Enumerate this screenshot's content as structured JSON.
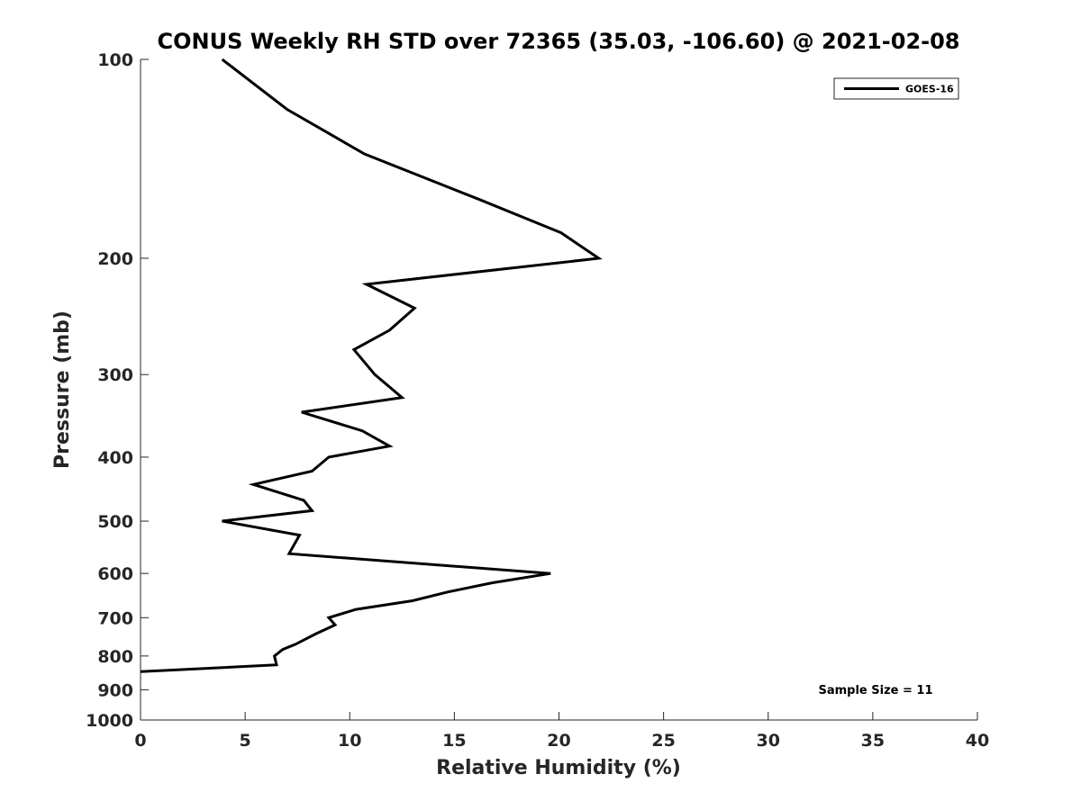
{
  "chart_data": {
    "type": "line",
    "title": "CONUS Weekly RH STD over 72365 (35.03, -106.60) @ 2021-02-08",
    "xlabel": "Relative Humidity (%)",
    "ylabel": "Pressure (mb)",
    "xlim": [
      0,
      40
    ],
    "ylim": [
      100,
      1000
    ],
    "y_scale": "log",
    "y_reversed": true,
    "x_ticks": [
      0,
      5,
      10,
      15,
      20,
      25,
      30,
      35,
      40
    ],
    "y_ticks": [
      100,
      200,
      300,
      400,
      500,
      600,
      700,
      800,
      900,
      1000
    ],
    "grid": false,
    "legend": {
      "position": "top-right",
      "entries": [
        "GOES-16"
      ]
    },
    "annotation": "Sample Size = 11",
    "series": [
      {
        "name": "GOES-16",
        "color": "#000000",
        "points": [
          {
            "rh": 3.9,
            "p": 100
          },
          {
            "rh": 7.0,
            "p": 119
          },
          {
            "rh": 10.7,
            "p": 139
          },
          {
            "rh": 16.2,
            "p": 163
          },
          {
            "rh": 20.1,
            "p": 183
          },
          {
            "rh": 21.9,
            "p": 200
          },
          {
            "rh": 10.8,
            "p": 219
          },
          {
            "rh": 13.1,
            "p": 238
          },
          {
            "rh": 11.9,
            "p": 257
          },
          {
            "rh": 10.2,
            "p": 275
          },
          {
            "rh": 11.2,
            "p": 300
          },
          {
            "rh": 12.5,
            "p": 325
          },
          {
            "rh": 7.7,
            "p": 342
          },
          {
            "rh": 10.6,
            "p": 365
          },
          {
            "rh": 11.9,
            "p": 385
          },
          {
            "rh": 9.0,
            "p": 400
          },
          {
            "rh": 8.2,
            "p": 420
          },
          {
            "rh": 5.4,
            "p": 440
          },
          {
            "rh": 7.8,
            "p": 465
          },
          {
            "rh": 8.2,
            "p": 482
          },
          {
            "rh": 3.9,
            "p": 500
          },
          {
            "rh": 7.6,
            "p": 525
          },
          {
            "rh": 7.1,
            "p": 560
          },
          {
            "rh": 19.6,
            "p": 600
          },
          {
            "rh": 16.8,
            "p": 620
          },
          {
            "rh": 14.7,
            "p": 640
          },
          {
            "rh": 13.0,
            "p": 660
          },
          {
            "rh": 10.3,
            "p": 680
          },
          {
            "rh": 9.0,
            "p": 700
          },
          {
            "rh": 9.3,
            "p": 718
          },
          {
            "rh": 8.4,
            "p": 740
          },
          {
            "rh": 7.4,
            "p": 768
          },
          {
            "rh": 6.8,
            "p": 782
          },
          {
            "rh": 6.4,
            "p": 800
          },
          {
            "rh": 6.5,
            "p": 825
          },
          {
            "rh": 0.0,
            "p": 845
          }
        ]
      }
    ]
  }
}
